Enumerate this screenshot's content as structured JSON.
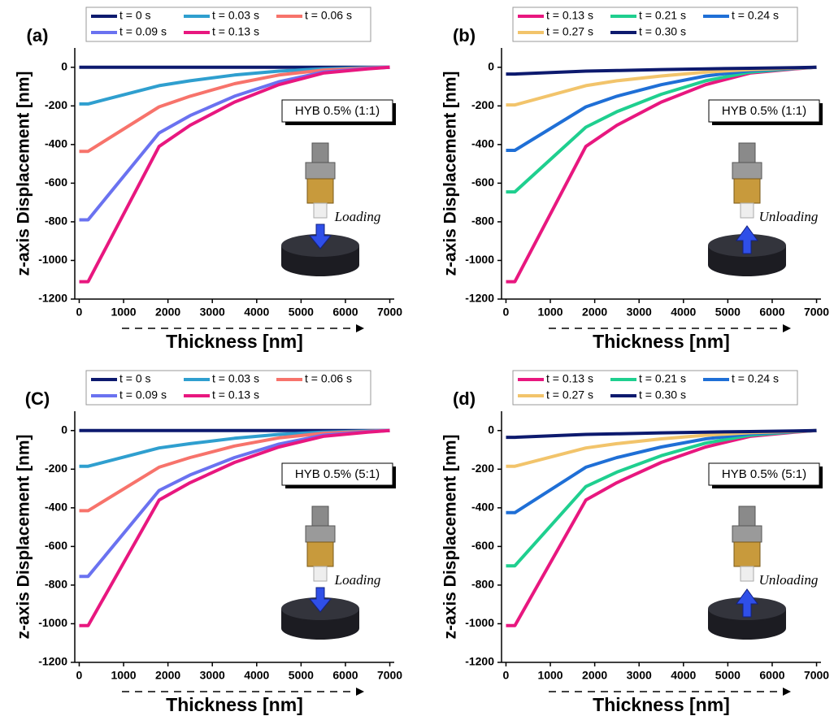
{
  "chart_data": [
    {
      "type": "line",
      "label": "(a)",
      "ylabel": "z-axis Displacement [nm]",
      "xlabel": "Thickness [nm]",
      "annotation": "HYB 0.5% (1:1)",
      "mode_label": "Loading",
      "x": [
        0,
        200,
        1800,
        2500,
        3500,
        4500,
        5500,
        6500,
        7000
      ],
      "series": [
        {
          "name": "t = 0 s",
          "color": "#0d1a6e",
          "values": [
            0,
            0,
            0,
            0,
            0,
            0,
            0,
            0,
            0
          ]
        },
        {
          "name": "t = 0.03 s",
          "color": "#2f9fcf",
          "values": [
            -190,
            -190,
            -95,
            -70,
            -40,
            -20,
            -8,
            -2,
            0
          ]
        },
        {
          "name": "t = 0.06 s",
          "color": "#f7736b",
          "values": [
            -435,
            -435,
            -205,
            -150,
            -85,
            -40,
            -15,
            -4,
            0
          ]
        },
        {
          "name": "t = 0.09 s",
          "color": "#6a72f0",
          "values": [
            -790,
            -790,
            -340,
            -250,
            -150,
            -75,
            -25,
            -6,
            0
          ]
        },
        {
          "name": "t = 0.13 s",
          "color": "#e8177f",
          "values": [
            -1110,
            -1110,
            -410,
            -300,
            -180,
            -90,
            -30,
            -8,
            0
          ]
        }
      ],
      "xlim": [
        -100,
        7100
      ],
      "ylim": [
        -1200,
        100
      ],
      "xticks": [
        0,
        1000,
        2000,
        3000,
        4000,
        5000,
        6000,
        7000
      ],
      "yticks": [
        0,
        -200,
        -400,
        -600,
        -800,
        -1000,
        -1200
      ]
    },
    {
      "type": "line",
      "label": "(b)",
      "ylabel": "z-axis Displacement [nm]",
      "xlabel": "Thickness [nm]",
      "annotation": "HYB 0.5% (1:1)",
      "mode_label": "Unloading",
      "x": [
        0,
        200,
        1800,
        2500,
        3500,
        4500,
        5500,
        6500,
        7000
      ],
      "series": [
        {
          "name": "t = 0.13 s",
          "color": "#e8177f",
          "values": [
            -1110,
            -1110,
            -410,
            -300,
            -180,
            -90,
            -30,
            -8,
            0
          ]
        },
        {
          "name": "t = 0.21 s",
          "color": "#1fcf8f",
          "values": [
            -645,
            -645,
            -310,
            -230,
            -140,
            -70,
            -25,
            -6,
            0
          ]
        },
        {
          "name": "t = 0.24 s",
          "color": "#1f6fd6",
          "values": [
            -430,
            -430,
            -205,
            -150,
            -90,
            -45,
            -18,
            -5,
            0
          ]
        },
        {
          "name": "t = 0.27 s",
          "color": "#f2c46b",
          "values": [
            -195,
            -195,
            -95,
            -70,
            -45,
            -25,
            -12,
            -4,
            0
          ]
        },
        {
          "name": "t = 0.30 s",
          "color": "#0d1a6e",
          "values": [
            -35,
            -35,
            -20,
            -17,
            -12,
            -8,
            -5,
            -2,
            0
          ]
        }
      ],
      "xlim": [
        -100,
        7100
      ],
      "ylim": [
        -1200,
        100
      ],
      "xticks": [
        0,
        1000,
        2000,
        3000,
        4000,
        5000,
        6000,
        7000
      ],
      "yticks": [
        0,
        -200,
        -400,
        -600,
        -800,
        -1000,
        -1200
      ]
    },
    {
      "type": "line",
      "label": "(C)",
      "ylabel": "z-axis Displacement [nm]",
      "xlabel": "Thickness [nm]",
      "annotation": "HYB 0.5% (5:1)",
      "mode_label": "Loading",
      "x": [
        0,
        200,
        1800,
        2500,
        3500,
        4500,
        5500,
        6500,
        7000
      ],
      "series": [
        {
          "name": "t = 0 s",
          "color": "#0d1a6e",
          "values": [
            0,
            0,
            0,
            0,
            0,
            0,
            0,
            0,
            0
          ]
        },
        {
          "name": "t = 0.03 s",
          "color": "#2f9fcf",
          "values": [
            -185,
            -185,
            -90,
            -68,
            -40,
            -20,
            -8,
            -2,
            0
          ]
        },
        {
          "name": "t = 0.06 s",
          "color": "#f7736b",
          "values": [
            -415,
            -415,
            -190,
            -140,
            -80,
            -38,
            -14,
            -4,
            0
          ]
        },
        {
          "name": "t = 0.09 s",
          "color": "#6a72f0",
          "values": [
            -755,
            -755,
            -310,
            -230,
            -140,
            -70,
            -24,
            -6,
            0
          ]
        },
        {
          "name": "t = 0.13 s",
          "color": "#e8177f",
          "values": [
            -1010,
            -1010,
            -360,
            -270,
            -165,
            -85,
            -30,
            -8,
            0
          ]
        }
      ],
      "xlim": [
        -100,
        7100
      ],
      "ylim": [
        -1200,
        100
      ],
      "xticks": [
        0,
        1000,
        2000,
        3000,
        4000,
        5000,
        6000,
        7000
      ],
      "yticks": [
        0,
        -200,
        -400,
        -600,
        -800,
        -1000,
        -1200
      ]
    },
    {
      "type": "line",
      "label": "(d)",
      "ylabel": "z-axis Displacement [nm]",
      "xlabel": "Thickness [nm]",
      "annotation": "HYB 0.5% (5:1)",
      "mode_label": "Unloading",
      "x": [
        0,
        200,
        1800,
        2500,
        3500,
        4500,
        5500,
        6500,
        7000
      ],
      "series": [
        {
          "name": "t = 0.13 s",
          "color": "#e8177f",
          "values": [
            -1010,
            -1010,
            -360,
            -270,
            -165,
            -85,
            -30,
            -8,
            0
          ]
        },
        {
          "name": "t = 0.21 s",
          "color": "#1fcf8f",
          "values": [
            -700,
            -700,
            -290,
            -215,
            -130,
            -65,
            -24,
            -6,
            0
          ]
        },
        {
          "name": "t = 0.24 s",
          "color": "#1f6fd6",
          "values": [
            -425,
            -425,
            -190,
            -140,
            -85,
            -43,
            -17,
            -5,
            0
          ]
        },
        {
          "name": "t = 0.27 s",
          "color": "#f2c46b",
          "values": [
            -185,
            -185,
            -90,
            -68,
            -43,
            -24,
            -11,
            -4,
            0
          ]
        },
        {
          "name": "t = 0.30 s",
          "color": "#0d1a6e",
          "values": [
            -35,
            -35,
            -20,
            -17,
            -12,
            -8,
            -5,
            -2,
            0
          ]
        }
      ],
      "xlim": [
        -100,
        7100
      ],
      "ylim": [
        -1200,
        100
      ],
      "xticks": [
        0,
        1000,
        2000,
        3000,
        4000,
        5000,
        6000,
        7000
      ],
      "yticks": [
        0,
        -200,
        -400,
        -600,
        -800,
        -1000,
        -1200
      ]
    }
  ]
}
